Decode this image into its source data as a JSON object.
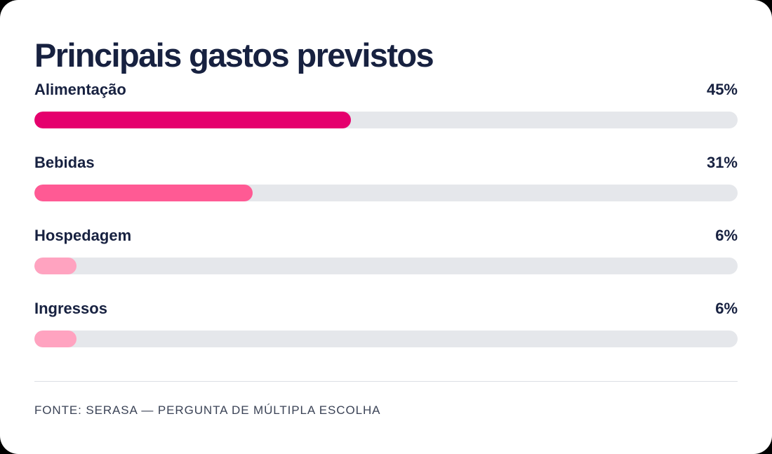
{
  "chart_data": {
    "type": "bar",
    "title": "Principais gastos previstos",
    "categories": [
      "Alimentação",
      "Bebidas",
      "Hospedagem",
      "Ingressos"
    ],
    "values": [
      45,
      31,
      6,
      6
    ],
    "value_labels": [
      "45%",
      "31%",
      "6%",
      "6%"
    ],
    "xlim": [
      0,
      100
    ],
    "unit": "%",
    "orientation": "horizontal",
    "grid": false,
    "legend": "none",
    "colors": [
      "#e5006d",
      "#ff5a94",
      "#ffa3c0",
      "#ffa3c0"
    ],
    "track_color": "#e5e7eb",
    "source": "FONTE: SERASA — PERGUNTA DE MÚLTIPLA ESCOLHA"
  }
}
